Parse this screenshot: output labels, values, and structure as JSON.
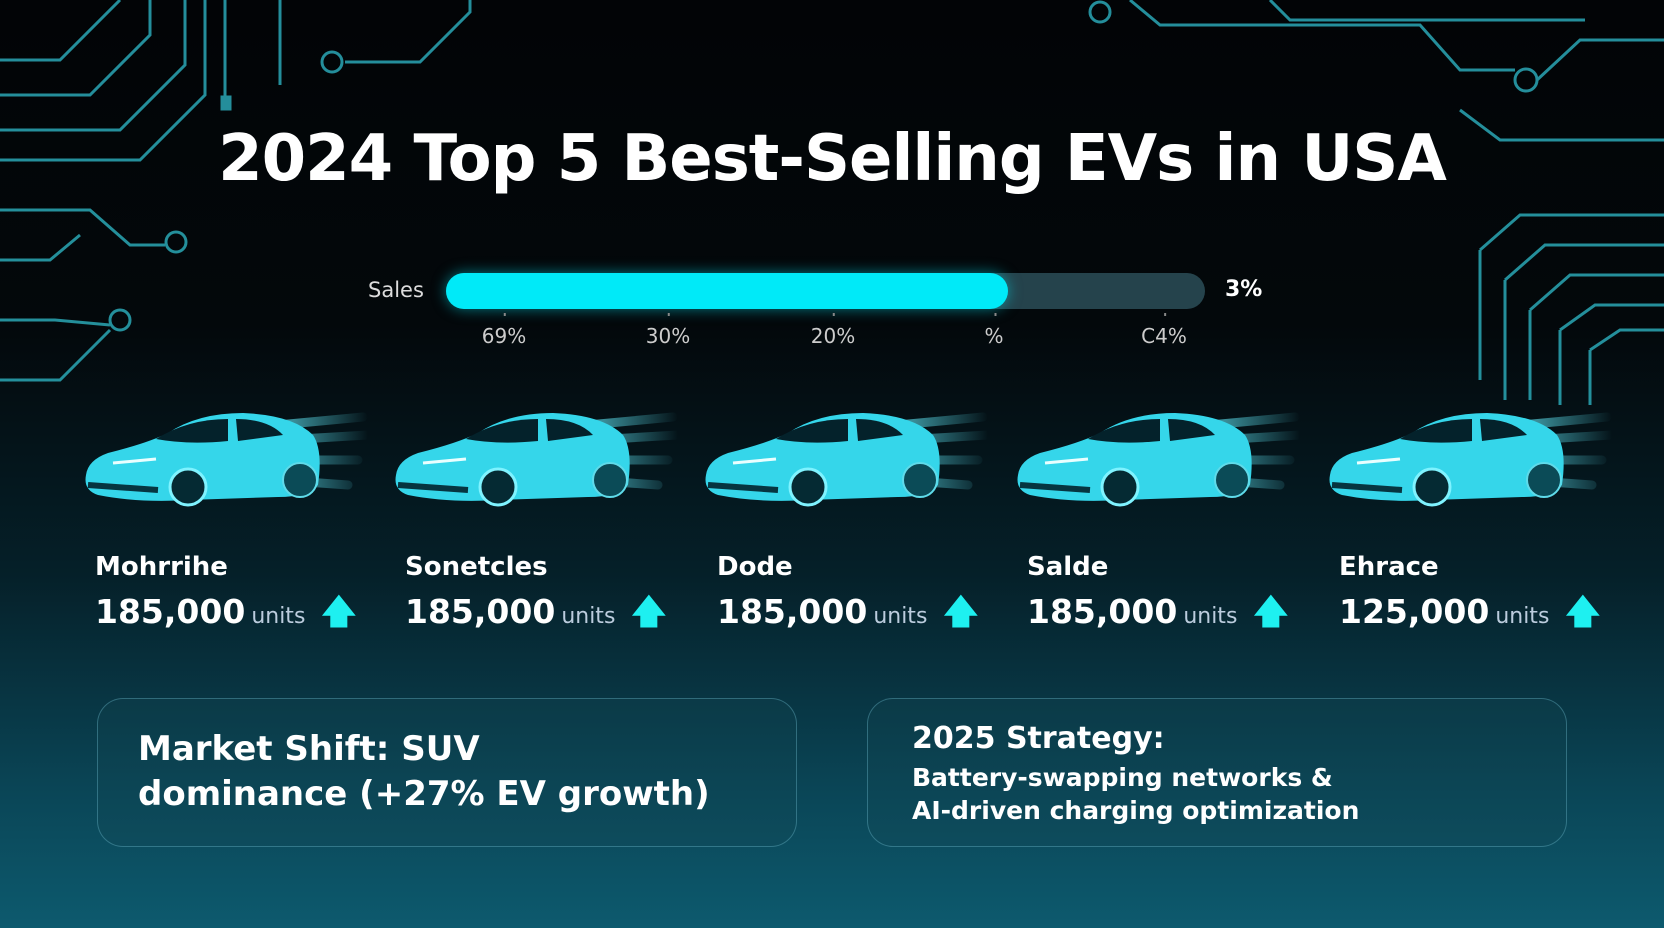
{
  "title": "2024 Top 5 Best-Selling EVs in USA",
  "sales_bar": {
    "label": "Sales",
    "fill_percent": 74,
    "end_label": "3%",
    "ticks": [
      "69%",
      "30%",
      "20%",
      "%",
      "C4%"
    ],
    "fill_color": "#00eaf8"
  },
  "cars": [
    {
      "name": "Mohrrihe",
      "value": "185,000",
      "units": "units",
      "trend": "up-arrow-icon"
    },
    {
      "name": "Sonetcles",
      "value": "185,000",
      "units": "units",
      "trend": "up-arrow-icon"
    },
    {
      "name": "Dode",
      "value": "185,000",
      "units": "units",
      "trend": "up-arrow-icon"
    },
    {
      "name": "Salde",
      "value": "185,000",
      "units": "units",
      "trend": "up-arrow-icon"
    },
    {
      "name": "Ehrace",
      "value": "125,000",
      "units": "units",
      "trend": "up-arrow-icon"
    }
  ],
  "cards": {
    "market_shift": {
      "line1": "Market Shift: SUV",
      "line2": "dominance (+27% EV growth)"
    },
    "strategy": {
      "heading": "2025 Strategy:",
      "line1": "Battery-swapping networks &",
      "line2": "AI-driven charging optimization"
    }
  },
  "colors": {
    "accent": "#00eaf8",
    "circuit": "#2aa7b5"
  }
}
